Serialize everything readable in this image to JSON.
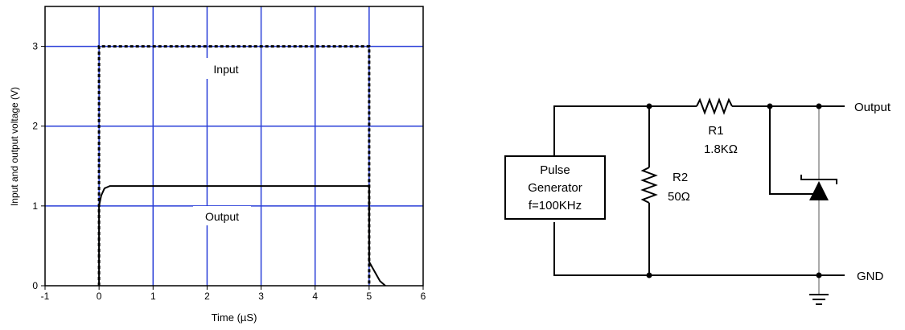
{
  "chart_data": {
    "type": "line",
    "xlabel": "Time (µS)",
    "ylabel": "Input and output voltage (V)",
    "xlim": [
      -1,
      6
    ],
    "ylim": [
      0,
      3.5
    ],
    "x_ticks": [
      "-1",
      "0",
      "1",
      "2",
      "3",
      "4",
      "5",
      "6"
    ],
    "y_ticks": [
      "0",
      "1",
      "2",
      "3"
    ],
    "grid": true,
    "grid_color": "#2a3fd8",
    "series": [
      {
        "name": "Input",
        "style": "dashed",
        "color": "#000000",
        "x": [
          0,
          0,
          5,
          5
        ],
        "y": [
          0,
          3,
          3,
          0
        ]
      },
      {
        "name": "Output",
        "style": "solid",
        "color": "#000000",
        "x": [
          0,
          0,
          0.04,
          0.1,
          0.2,
          5,
          5,
          5.1,
          5.2,
          5.3
        ],
        "y": [
          0,
          1.0,
          1.13,
          1.22,
          1.25,
          1.25,
          0.3,
          0.18,
          0.06,
          0
        ]
      }
    ]
  },
  "circuit": {
    "generator_lines": [
      "Pulse",
      "Generator",
      "f=100KHz"
    ],
    "r1_name": "R1",
    "r1_value": "1.8KΩ",
    "r2_name": "R2",
    "r2_value": "50Ω",
    "output_label": "Output",
    "gnd_label": "GND"
  }
}
